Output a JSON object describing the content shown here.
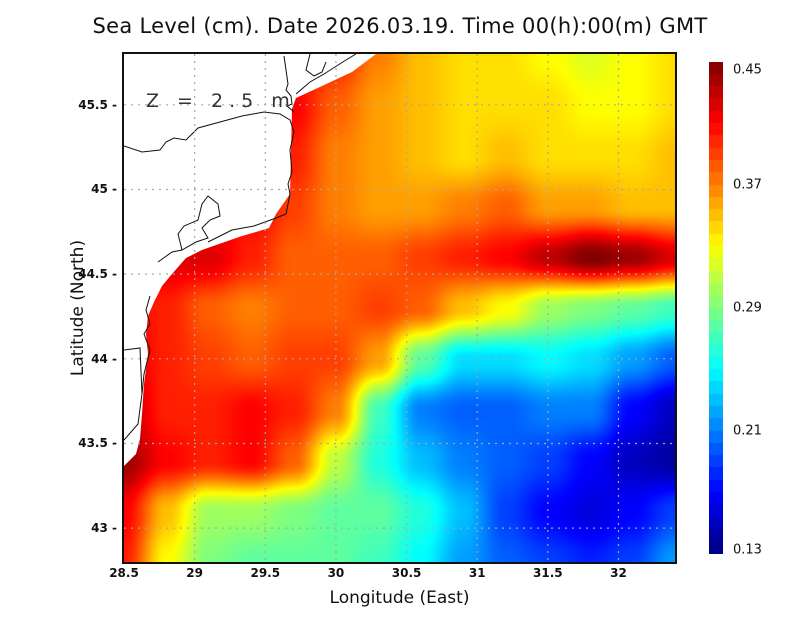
{
  "chart_data": {
    "type": "heatmap",
    "title": "Sea Level (cm). Date 2026.03.19. Time 00(h):00(m) GMT",
    "xlabel": "Longitude (East)",
    "ylabel": "Latitude (North)",
    "annotation": "Z = 2.5 m",
    "xlim": [
      28.5,
      32.4
    ],
    "ylim": [
      42.8,
      45.8
    ],
    "x_ticks": [
      "28.5",
      "29",
      "29.5",
      "30",
      "30.5",
      "31",
      "31.5",
      "32"
    ],
    "y_ticks": [
      "43",
      "43.5",
      "44",
      "44.5",
      "45",
      "45.5"
    ],
    "x_tick_values": [
      28.5,
      29,
      29.5,
      30,
      30.5,
      31,
      31.5,
      32
    ],
    "y_tick_values": [
      43,
      43.5,
      44,
      44.5,
      45,
      45.5
    ],
    "grid": true,
    "colormap": "jet",
    "colorbar": {
      "range": [
        0.13,
        0.45
      ],
      "tick_labels": [
        "0.45",
        "0.37",
        "0.29",
        "0.21",
        "0.13"
      ],
      "tick_values": [
        0.45,
        0.37,
        0.29,
        0.21,
        0.13
      ],
      "placement": "right"
    },
    "grid_lon": [
      28.5,
      28.8,
      29.1,
      29.4,
      29.7,
      30.0,
      30.3,
      30.6,
      30.9,
      31.2,
      31.5,
      31.8,
      32.1,
      32.4
    ],
    "grid_lat": [
      45.8,
      45.5,
      45.2,
      44.9,
      44.6,
      44.3,
      44.0,
      43.7,
      43.4,
      43.1,
      42.8
    ],
    "values": [
      [
        null,
        null,
        null,
        null,
        null,
        0.4,
        0.37,
        0.35,
        0.34,
        0.34,
        0.33,
        0.32,
        0.33,
        0.34
      ],
      [
        null,
        null,
        null,
        null,
        0.41,
        0.38,
        0.36,
        0.35,
        0.34,
        0.34,
        0.34,
        0.33,
        0.33,
        0.34
      ],
      [
        null,
        null,
        null,
        null,
        0.4,
        0.37,
        0.36,
        0.35,
        0.34,
        0.35,
        0.34,
        0.34,
        0.34,
        0.35
      ],
      [
        null,
        null,
        null,
        0.41,
        0.39,
        0.37,
        0.36,
        0.36,
        0.37,
        0.38,
        0.36,
        0.36,
        0.35,
        0.35
      ],
      [
        null,
        0.42,
        0.42,
        0.4,
        0.38,
        0.38,
        0.38,
        0.39,
        0.4,
        0.41,
        0.43,
        0.45,
        0.44,
        0.42
      ],
      [
        0.41,
        0.4,
        0.38,
        0.37,
        0.38,
        0.38,
        0.39,
        0.38,
        0.35,
        0.33,
        0.3,
        0.29,
        0.28,
        0.27
      ],
      [
        0.42,
        0.4,
        0.39,
        0.38,
        0.39,
        0.39,
        0.36,
        0.28,
        0.24,
        0.24,
        0.25,
        0.24,
        0.22,
        0.2
      ],
      [
        0.43,
        0.4,
        0.4,
        0.41,
        0.4,
        0.37,
        0.27,
        0.21,
        0.2,
        0.2,
        0.21,
        0.21,
        0.17,
        0.15
      ],
      [
        0.44,
        0.41,
        0.4,
        0.41,
        0.38,
        0.31,
        0.26,
        0.23,
        0.21,
        0.2,
        0.19,
        0.17,
        0.15,
        0.14
      ],
      [
        0.41,
        0.35,
        0.3,
        0.3,
        0.29,
        0.28,
        0.28,
        0.26,
        0.23,
        0.19,
        0.17,
        0.16,
        0.17,
        0.19
      ],
      [
        0.4,
        0.33,
        0.29,
        0.28,
        0.28,
        0.28,
        0.27,
        0.25,
        0.22,
        0.2,
        0.19,
        0.18,
        0.19,
        0.22
      ]
    ],
    "value_units": "m"
  }
}
